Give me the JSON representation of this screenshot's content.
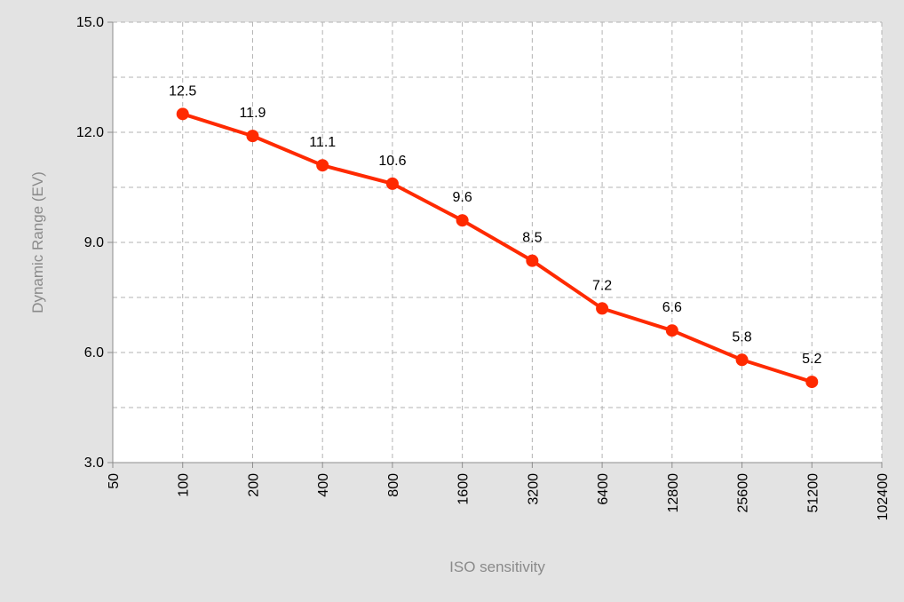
{
  "chart_data": {
    "type": "line",
    "title": "",
    "xlabel": "ISO sensitivity",
    "ylabel": "Dynamic Range (EV)",
    "x_scale": "log2",
    "x_ticks": [
      "50",
      "100",
      "200",
      "400",
      "800",
      "1600",
      "3200",
      "6400",
      "12800",
      "25600",
      "51200",
      "102400"
    ],
    "y_ticks": [
      "3.0",
      "6.0",
      "9.0",
      "12.0",
      "15.0"
    ],
    "ylim": [
      3.0,
      15.0
    ],
    "y_minor_step": 1.5,
    "grid": true,
    "series": [
      {
        "color": "#ff2a00",
        "x": [
          100,
          200,
          400,
          800,
          1600,
          3200,
          6400,
          12800,
          25600,
          51200
        ],
        "y": [
          12.5,
          11.9,
          11.1,
          10.6,
          9.6,
          8.5,
          7.2,
          6.6,
          5.8,
          5.2
        ],
        "data_labels": [
          "12.5",
          "11.9",
          "11.1",
          "10.6",
          "9.6",
          "8.5",
          "7.2",
          "6.6",
          "5.8",
          "5.2"
        ]
      }
    ]
  }
}
